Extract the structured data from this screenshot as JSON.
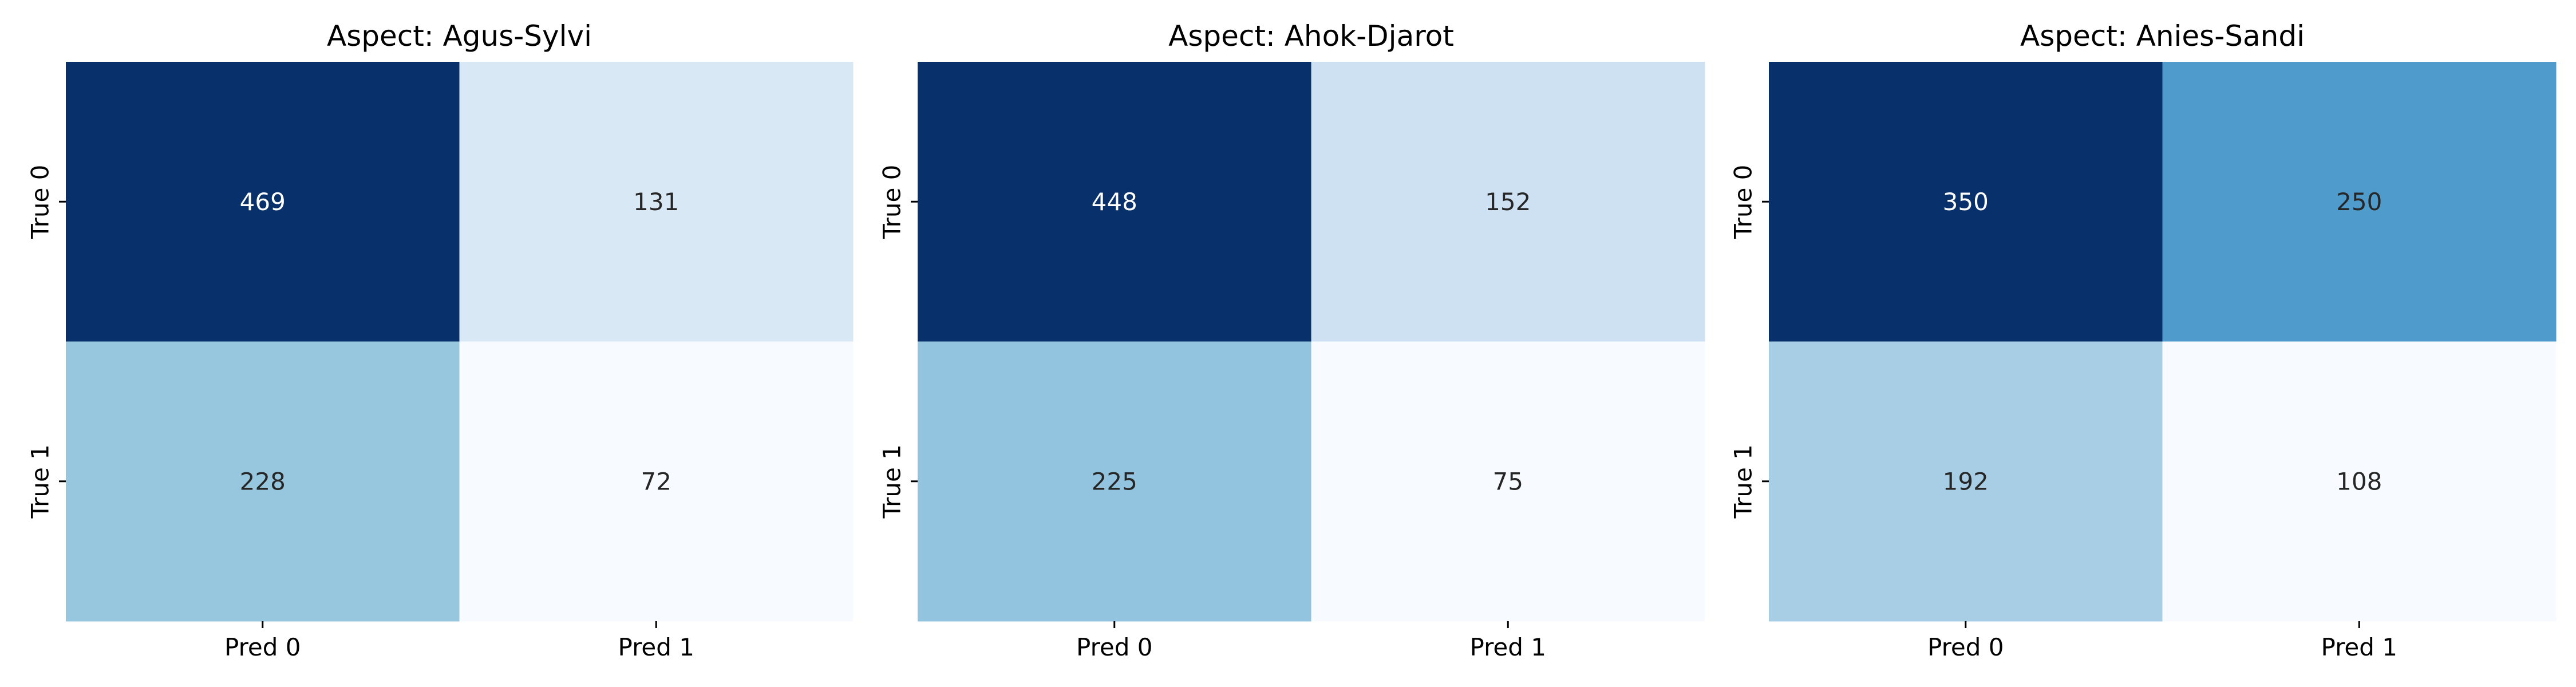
{
  "chart_data": [
    {
      "type": "heatmap",
      "title": "Aspect: Agus-Sylvi",
      "xlabel": "",
      "ylabel": "",
      "x_categories": [
        "Pred 0",
        "Pred 1"
      ],
      "y_categories": [
        "True 0",
        "True 1"
      ],
      "values": [
        [
          469,
          131
        ],
        [
          228,
          72
        ]
      ],
      "colormap": "Blues",
      "colorbar": false,
      "grid": false
    },
    {
      "type": "heatmap",
      "title": "Aspect: Ahok-Djarot",
      "xlabel": "",
      "ylabel": "",
      "x_categories": [
        "Pred 0",
        "Pred 1"
      ],
      "y_categories": [
        "True 0",
        "True 1"
      ],
      "values": [
        [
          448,
          152
        ],
        [
          225,
          75
        ]
      ],
      "colormap": "Blues",
      "colorbar": false,
      "grid": false
    },
    {
      "type": "heatmap",
      "title": "Aspect: Anies-Sandi",
      "xlabel": "",
      "ylabel": "",
      "x_categories": [
        "Pred 0",
        "Pred 1"
      ],
      "y_categories": [
        "True 0",
        "True 1"
      ],
      "values": [
        [
          350,
          250
        ],
        [
          192,
          108
        ]
      ],
      "colormap": "Blues",
      "colorbar": false,
      "grid": false
    }
  ]
}
